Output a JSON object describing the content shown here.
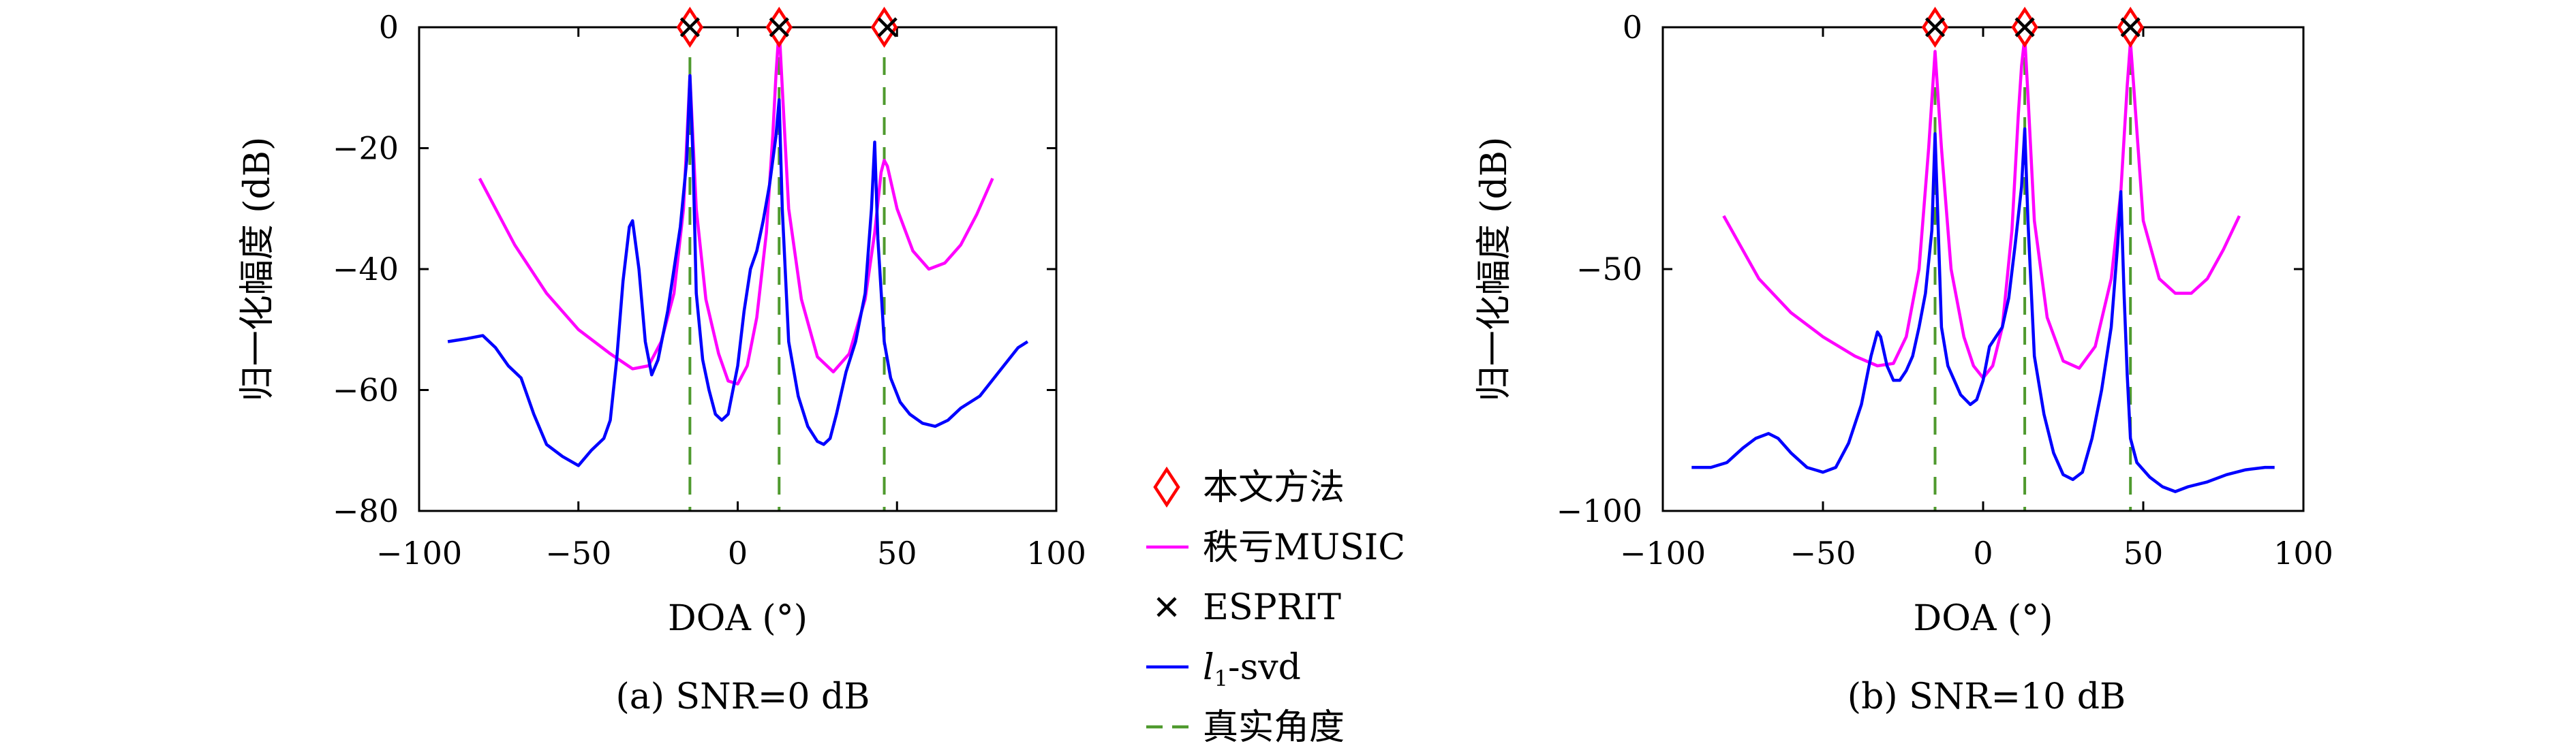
{
  "figure": {
    "legend": [
      {
        "key": "proposed",
        "label": "本文方法",
        "marker": "diamond",
        "color": "#ff0000"
      },
      {
        "key": "music",
        "label": "秩亏MUSIC",
        "marker": "line",
        "color": "#ff00ff"
      },
      {
        "key": "esprit",
        "label": "ESPRIT",
        "marker": "x",
        "color": "#000000"
      },
      {
        "key": "l1svd",
        "label_main": "l",
        "label_sub": "1",
        "label_rest": "-svd",
        "marker": "line",
        "color": "#0000ff"
      },
      {
        "key": "truth",
        "label": "真实角度",
        "marker": "dashed",
        "color": "#4f9a2e"
      }
    ]
  },
  "chart_data": [
    {
      "type": "line",
      "caption": "(a) SNR=0 dB",
      "xlabel": "DOA (°)",
      "ylabel": "归一化幅度 (dB)",
      "xlim": [
        -100,
        100
      ],
      "ylim": [
        -80,
        0
      ],
      "xticks": [
        -100,
        -50,
        0,
        50,
        100
      ],
      "yticks": [
        0,
        -20,
        -40,
        -60,
        -80
      ],
      "xtick_labels": [
        "−100",
        "−50",
        "0",
        "50",
        "100"
      ],
      "ytick_labels": [
        "0",
        "−20",
        "−40",
        "−60",
        "−80"
      ],
      "true_angles": [
        -15,
        13,
        46
      ],
      "series": [
        {
          "name": "秩亏MUSIC",
          "color": "#ff00ff",
          "x": [
            -81,
            -70,
            -60,
            -50,
            -40,
            -33,
            -28,
            -24,
            -20,
            -17,
            -15,
            -13,
            -10,
            -6,
            -3,
            0,
            3,
            6,
            9,
            11,
            12,
            13,
            14,
            16,
            20,
            25,
            30,
            35,
            40,
            43,
            45,
            46,
            47,
            50,
            55,
            60,
            65,
            70,
            75,
            80
          ],
          "y": [
            -25,
            -36,
            -44,
            -50,
            -54,
            -56.5,
            -56,
            -52,
            -44,
            -30,
            -8,
            -30,
            -45,
            -54,
            -58.5,
            -59,
            -56,
            -48,
            -34,
            -18,
            -8,
            0,
            -10,
            -30,
            -45,
            -54.5,
            -57,
            -54,
            -45,
            -34,
            -24,
            -22,
            -23,
            -30,
            -37,
            -40,
            -39,
            -36,
            -31,
            -25
          ]
        },
        {
          "name": "l1-svd",
          "color": "#0000ff",
          "x": [
            -91,
            -85,
            -80,
            -76,
            -72,
            -68,
            -64,
            -60,
            -55,
            -50,
            -46,
            -42,
            -40,
            -38,
            -36,
            -34,
            -33,
            -31,
            -29,
            -27,
            -25,
            -22,
            -20,
            -18,
            -16,
            -15,
            -14,
            -13,
            -11,
            -9,
            -7,
            -5,
            -3,
            0,
            2,
            4,
            6,
            8,
            10,
            12,
            13,
            14,
            16,
            19,
            22,
            25,
            27,
            29,
            31,
            34,
            37,
            40,
            42,
            43,
            44,
            46,
            48,
            51,
            54,
            58,
            62,
            66,
            70,
            76,
            82,
            88,
            91
          ],
          "y": [
            -52,
            -51.5,
            -51,
            -53,
            -56,
            -58,
            -64,
            -69,
            -71,
            -72.5,
            -70,
            -68,
            -65,
            -55,
            -42,
            -33,
            -32,
            -40,
            -52,
            -57.5,
            -55,
            -47,
            -40,
            -33,
            -22,
            -8,
            -22,
            -44,
            -55,
            -60,
            -64,
            -65,
            -64,
            -56,
            -47,
            -40,
            -37,
            -32,
            -26,
            -18,
            -12,
            -30,
            -52,
            -61,
            -66,
            -68.5,
            -69,
            -68,
            -64,
            -57,
            -52,
            -44,
            -30,
            -19,
            -35,
            -52,
            -58,
            -62,
            -64,
            -65.5,
            -66,
            -65,
            -63,
            -61,
            -57,
            -53,
            -52
          ]
        }
      ],
      "markers": {
        "proposed": [
          {
            "x": -15,
            "y": 0
          },
          {
            "x": 13,
            "y": 0
          },
          {
            "x": 46,
            "y": 0
          }
        ],
        "esprit": [
          {
            "x": -15,
            "y": 0
          },
          {
            "x": 13,
            "y": 0
          },
          {
            "x": 47,
            "y": 0
          }
        ]
      }
    },
    {
      "type": "line",
      "caption": "(b) SNR=10 dB",
      "xlabel": "DOA (°)",
      "ylabel": "归一化幅度 (dB)",
      "xlim": [
        -100,
        100
      ],
      "ylim": [
        -100,
        0
      ],
      "xticks": [
        -100,
        -50,
        0,
        50,
        100
      ],
      "yticks": [
        0,
        -50,
        -100
      ],
      "xtick_labels": [
        "−100",
        "−50",
        "0",
        "50",
        "100"
      ],
      "ytick_labels": [
        "0",
        "−50",
        "−100"
      ],
      "true_angles": [
        -15,
        13,
        46
      ],
      "series": [
        {
          "name": "秩亏MUSIC",
          "color": "#ff00ff",
          "x": [
            -81,
            -70,
            -60,
            -50,
            -40,
            -33,
            -28,
            -24,
            -20,
            -17,
            -15,
            -13,
            -10,
            -6,
            -3,
            0,
            3,
            6,
            9,
            11,
            12,
            13,
            14,
            16,
            20,
            25,
            30,
            35,
            40,
            43,
            45,
            46,
            47,
            50,
            55,
            60,
            65,
            70,
            75,
            80
          ],
          "y": [
            -39,
            -52,
            -59,
            -64,
            -68,
            -70,
            -69.5,
            -64,
            -50,
            -25,
            -5,
            -25,
            -50,
            -64,
            -70,
            -72.5,
            -70,
            -62,
            -42,
            -18,
            -8,
            -2,
            -14,
            -40,
            -60,
            -69,
            -70.5,
            -66,
            -52,
            -34,
            -12,
            -3,
            -12,
            -40,
            -52,
            -55,
            -55,
            -52,
            -46,
            -39
          ]
        },
        {
          "name": "l1-svd",
          "color": "#0000ff",
          "x": [
            -91,
            -85,
            -80,
            -75,
            -71,
            -67,
            -64,
            -60,
            -55,
            -50,
            -46,
            -42,
            -38,
            -35,
            -33,
            -32,
            -30,
            -28,
            -26,
            -24,
            -22,
            -20,
            -18,
            -16,
            -15,
            -14,
            -13,
            -11,
            -9,
            -7,
            -4,
            -2,
            0,
            2,
            4,
            6,
            8,
            10,
            12,
            13,
            14,
            16,
            19,
            22,
            25,
            28,
            31,
            34,
            37,
            40,
            42,
            43,
            44,
            45,
            46,
            48,
            52,
            56,
            60,
            64,
            70,
            76,
            82,
            88,
            91
          ],
          "y": [
            -91,
            -91,
            -90,
            -87,
            -85,
            -84,
            -85,
            -88,
            -91,
            -92,
            -91,
            -86,
            -78,
            -68,
            -63,
            -64,
            -70,
            -73,
            -73,
            -71,
            -68,
            -62,
            -55,
            -42,
            -22,
            -42,
            -62,
            -70,
            -73,
            -76,
            -78,
            -77,
            -73,
            -66,
            -64,
            -62,
            -56,
            -45,
            -33,
            -21,
            -40,
            -68,
            -80,
            -88,
            -92.5,
            -93.5,
            -92,
            -85,
            -75,
            -62,
            -45,
            -34,
            -55,
            -72,
            -85,
            -90,
            -93,
            -95,
            -96,
            -95,
            -94,
            -92.5,
            -91.5,
            -91,
            -91
          ]
        }
      ],
      "markers": {
        "proposed": [
          {
            "x": -15,
            "y": 0
          },
          {
            "x": 13,
            "y": 0
          },
          {
            "x": 46,
            "y": 0
          }
        ],
        "esprit": [
          {
            "x": -15,
            "y": 0
          },
          {
            "x": 13,
            "y": 0
          },
          {
            "x": 46,
            "y": 0
          }
        ]
      }
    }
  ]
}
